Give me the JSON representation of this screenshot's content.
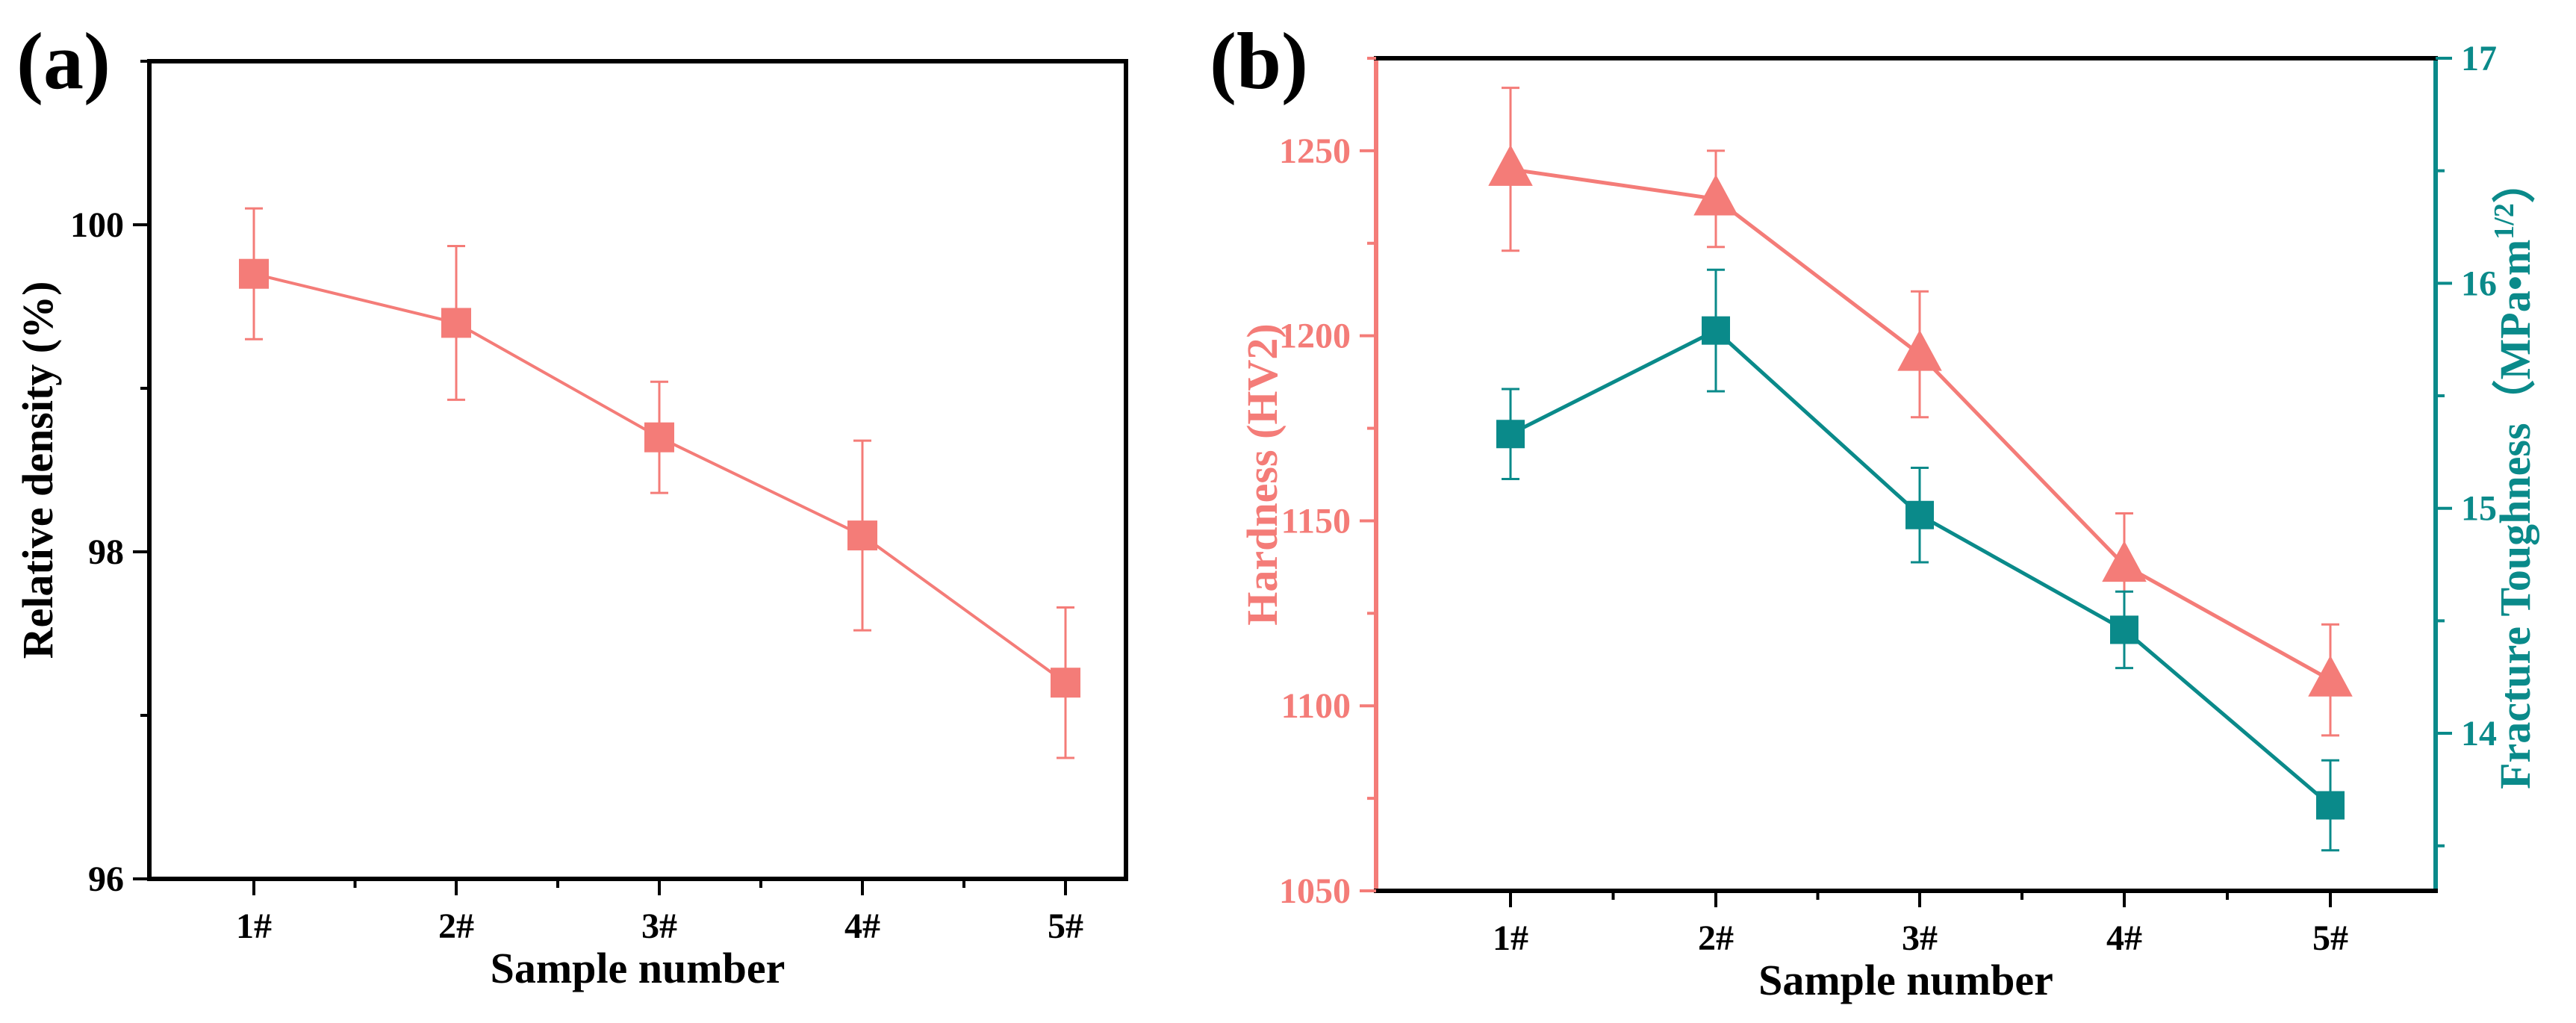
{
  "chart_data": [
    {
      "panel_label": "(a)",
      "type": "line",
      "xlabel": "Sample number",
      "ylabel": "Relative density (%)",
      "categories": [
        "1#",
        "2#",
        "3#",
        "4#",
        "5#"
      ],
      "ylim": [
        96,
        101
      ],
      "yticks": [
        96,
        98,
        100
      ],
      "series": [
        {
          "name": "Relative density",
          "marker": "square",
          "color": "#f47c78",
          "values": [
            99.7,
            99.4,
            98.7,
            98.1,
            97.2
          ],
          "errors": [
            0.4,
            0.47,
            0.34,
            0.58,
            0.46
          ]
        }
      ]
    },
    {
      "panel_label": "(b)",
      "type": "line",
      "xlabel": "Sample number",
      "categories": [
        "1#",
        "2#",
        "3#",
        "4#",
        "5#"
      ],
      "y_left": {
        "label": "Hardness (HV2)",
        "color": "#f47c78",
        "lim": [
          1050,
          1275
        ],
        "ticks": [
          1050,
          1100,
          1150,
          1200,
          1250
        ]
      },
      "y_right": {
        "label_text": "Fracture Toughness（MPa•m",
        "label_sup": "1/2",
        "label_close": "）",
        "color": "#0a8a8a",
        "lim": [
          13.3,
          17
        ],
        "ticks": [
          14,
          15,
          16,
          17
        ]
      },
      "series": [
        {
          "name": "Hardness",
          "axis": "left",
          "marker": "triangle",
          "color": "#f47c78",
          "values": [
            1245,
            1237,
            1195,
            1138,
            1107
          ],
          "errors": [
            22,
            13,
            17,
            14,
            15
          ]
        },
        {
          "name": "Fracture Toughness",
          "axis": "right",
          "marker": "square",
          "color": "#0a8a8a",
          "values": [
            15.33,
            15.79,
            14.97,
            14.46,
            13.68
          ],
          "errors": [
            0.2,
            0.27,
            0.21,
            0.17,
            0.2
          ]
        }
      ]
    }
  ]
}
